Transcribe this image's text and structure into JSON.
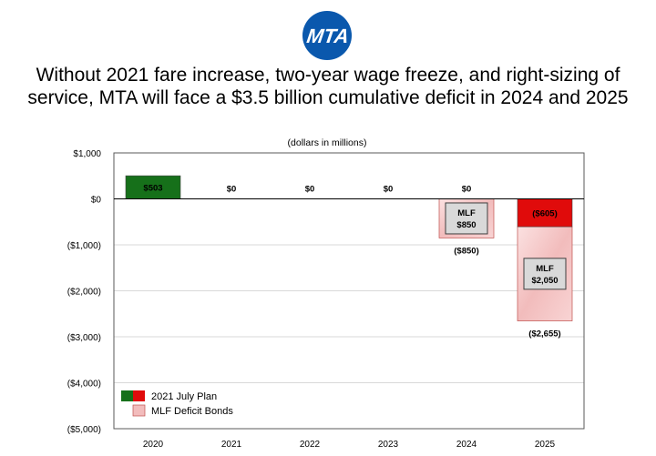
{
  "logo": {
    "text": "MTA",
    "color": "#0a58ad"
  },
  "title_lines": [
    "Without 2021 fare increase, two-year wage freeze, and right-sizing of",
    "service, MTA will face a $3.5 billion cumulative deficit in 2024 and 2025"
  ],
  "chart_data": {
    "type": "bar",
    "subtitle": "(dollars in millions)",
    "categories": [
      "2020",
      "2021",
      "2022",
      "2023",
      "2024",
      "2025"
    ],
    "ylim": [
      -5000,
      1000
    ],
    "yticks": [
      1000,
      0,
      -1000,
      -2000,
      -3000,
      -4000,
      -5000
    ],
    "ytick_labels": [
      "$1,000",
      "$0",
      "($1,000)",
      "($2,000)",
      "($3,000)",
      "($4,000)",
      "($5,000)"
    ],
    "grid": true,
    "legend_position": "bottom-left",
    "series": [
      {
        "name": "2021 July Plan",
        "colors": {
          "positive": "#16701a",
          "negative": "#e00b0b"
        },
        "values": [
          503,
          0,
          0,
          0,
          0,
          -605
        ],
        "labels": [
          "$503",
          "$0",
          "$0",
          "$0",
          "$0",
          "($605)"
        ]
      },
      {
        "name": "MLF Deficit Bonds",
        "color": "#f2bcbc",
        "values": [
          0,
          0,
          0,
          0,
          -850,
          -2050
        ],
        "box_labels": [
          null,
          null,
          null,
          null,
          [
            "MLF",
            "$850"
          ],
          [
            "MLF",
            "$2,050"
          ]
        ]
      }
    ],
    "total_labels": [
      null,
      null,
      null,
      null,
      "($850)",
      "($2,655)"
    ]
  }
}
